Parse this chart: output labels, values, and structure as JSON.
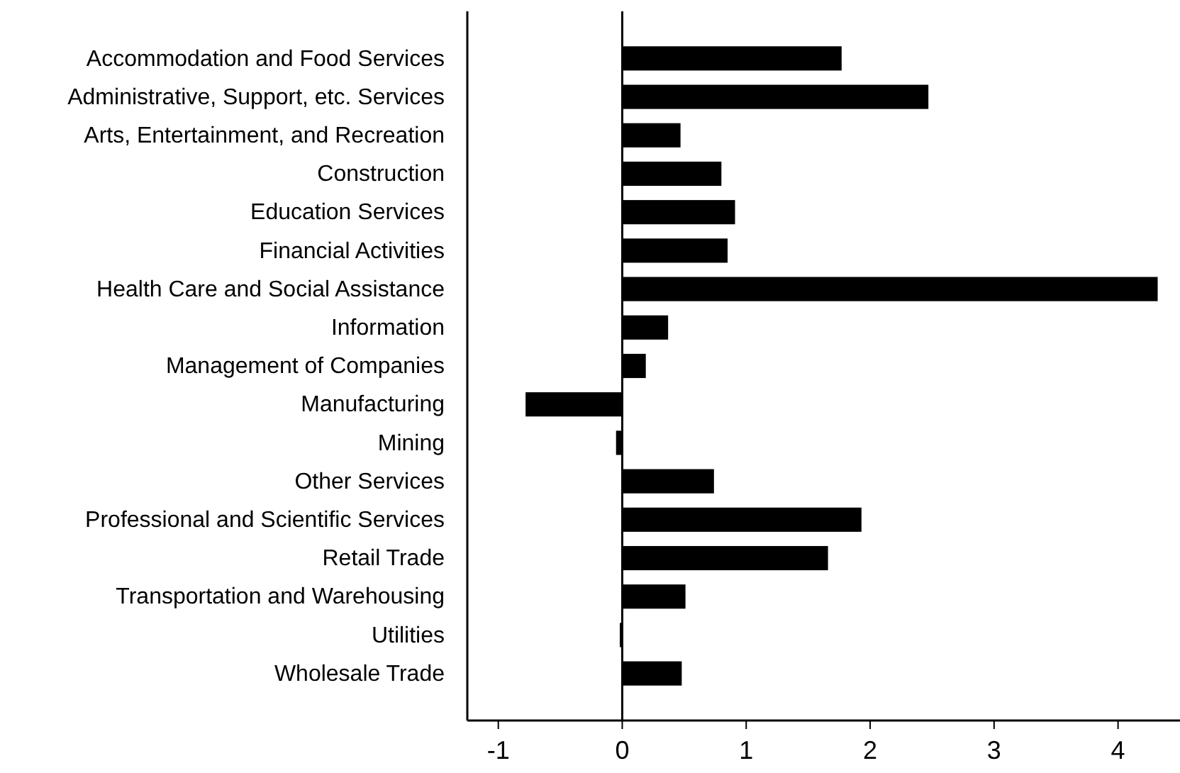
{
  "chart_data": {
    "type": "bar",
    "orientation": "horizontal",
    "categories": [
      "Accommodation and Food Services",
      "Administrative, Support, etc. Services",
      "Arts, Entertainment, and Recreation",
      "Construction",
      "Education Services",
      "Financial Activities",
      "Health Care and Social Assistance",
      "Information",
      "Management of Companies",
      "Manufacturing",
      "Mining",
      "Other Services",
      "Professional and Scientific Services",
      "Retail Trade",
      "Transportation and Warehousing",
      "Utilities",
      "Wholesale Trade"
    ],
    "values": [
      1.77,
      2.47,
      0.47,
      0.8,
      0.91,
      0.85,
      4.32,
      0.37,
      0.19,
      -0.78,
      -0.05,
      0.74,
      1.93,
      1.66,
      0.51,
      -0.02,
      0.48
    ],
    "color": "#000000",
    "xlim": [
      -1.25,
      4.5
    ],
    "xticks": [
      -1,
      0,
      1,
      2,
      3,
      4
    ]
  }
}
